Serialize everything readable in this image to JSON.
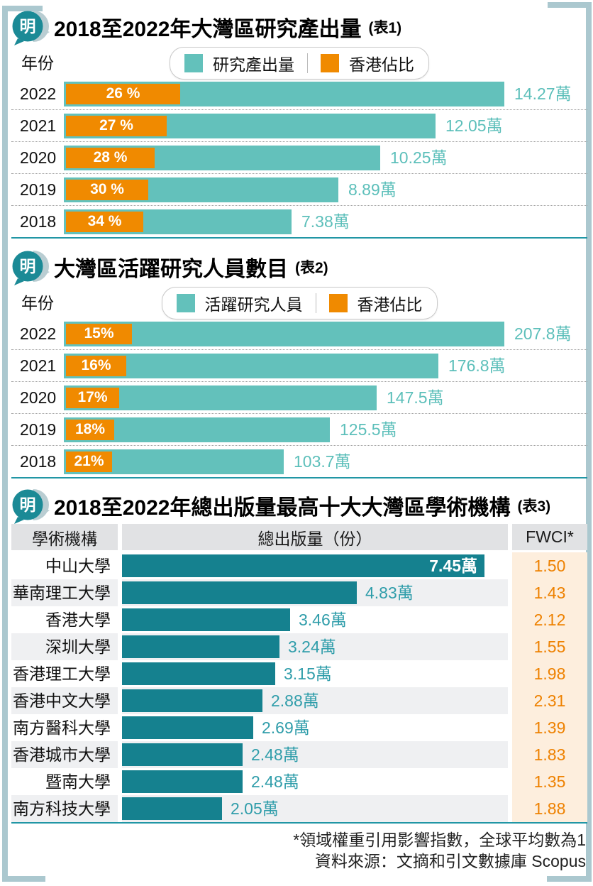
{
  "brand": {
    "logo_char": "明"
  },
  "colors": {
    "teal_light": "#63c1bb",
    "teal_dark": "#15818f",
    "orange": "#f08a00",
    "value_label_teal": "#5cbfba",
    "fwci_text": "#ee8100",
    "fwci_bg": "#fdeedd",
    "row_alt_bg": "#eff0f2",
    "table_header_bg": "#e1e2e4",
    "frame": "#abc8cf",
    "rule_teal": "#2196a5"
  },
  "chart_data": [
    {
      "type": "bar",
      "orientation": "horizontal",
      "title": "2018至2022年大灣區研究產出量",
      "tag": "(表1)",
      "axis_label": "年份",
      "legend_position": "top-center",
      "categories": [
        "2022",
        "2021",
        "2020",
        "2019",
        "2018"
      ],
      "series": [
        {
          "name": "研究產出量",
          "unit": "萬",
          "values": [
            14.27,
            12.05,
            10.25,
            8.89,
            7.38
          ],
          "labels": [
            "14.27萬",
            "12.05萬",
            "10.25萬",
            "8.89萬",
            "7.38萬"
          ]
        },
        {
          "name": "香港佔比",
          "unit": "%",
          "values": [
            26,
            27,
            28,
            30,
            34
          ],
          "labels": [
            "26 %",
            "27 %",
            "28 %",
            "30 %",
            "34 %"
          ]
        }
      ],
      "xlim": [
        0,
        14.27
      ]
    },
    {
      "type": "bar",
      "orientation": "horizontal",
      "title": "大灣區活躍研究人員數目",
      "tag": "(表2)",
      "axis_label": "年份",
      "legend_position": "top-center",
      "categories": [
        "2022",
        "2021",
        "2020",
        "2019",
        "2018"
      ],
      "series": [
        {
          "name": "活躍研究人員",
          "unit": "萬",
          "values": [
            207.8,
            176.8,
            147.5,
            125.5,
            103.7
          ],
          "labels": [
            "207.8萬",
            "176.8萬",
            "147.5萬",
            "125.5萬",
            "103.7萬"
          ]
        },
        {
          "name": "香港佔比",
          "unit": "%",
          "values": [
            15,
            16,
            17,
            18,
            21
          ],
          "labels": [
            "15%",
            "16%",
            "17%",
            "18%",
            "21%"
          ]
        }
      ],
      "xlim": [
        0,
        207.8
      ]
    },
    {
      "type": "table",
      "title": "2018至2022年總出版量最高十大大灣區學術機構",
      "tag": "(表3)",
      "columns": [
        "學術機構",
        "總出版量（份）",
        "FWCI*"
      ],
      "value_axis_max": 7.45,
      "rows": [
        {
          "institution": "中山大學",
          "publications": 7.45,
          "label": "7.45萬",
          "fwci": "1.50"
        },
        {
          "institution": "華南理工大學",
          "publications": 4.83,
          "label": "4.83萬",
          "fwci": "1.43"
        },
        {
          "institution": "香港大學",
          "publications": 3.46,
          "label": "3.46萬",
          "fwci": "2.12"
        },
        {
          "institution": "深圳大學",
          "publications": 3.24,
          "label": "3.24萬",
          "fwci": "1.55"
        },
        {
          "institution": "香港理工大學",
          "publications": 3.15,
          "label": "3.15萬",
          "fwci": "1.98"
        },
        {
          "institution": "香港中文大學",
          "publications": 2.88,
          "label": "2.88萬",
          "fwci": "2.31"
        },
        {
          "institution": "南方醫科大學",
          "publications": 2.69,
          "label": "2.69萬",
          "fwci": "1.39"
        },
        {
          "institution": "香港城市大學",
          "publications": 2.48,
          "label": "2.48萬",
          "fwci": "1.83"
        },
        {
          "institution": "暨南大學",
          "publications": 2.48,
          "label": "2.48萬",
          "fwci": "1.35"
        },
        {
          "institution": "南方科技大學",
          "publications": 2.05,
          "label": "2.05萬",
          "fwci": "1.88"
        }
      ]
    }
  ],
  "footnotes": [
    "*領域權重引用影響指數，全球平均數為1",
    "資料來源：文摘和引文數據庫 Scopus"
  ]
}
